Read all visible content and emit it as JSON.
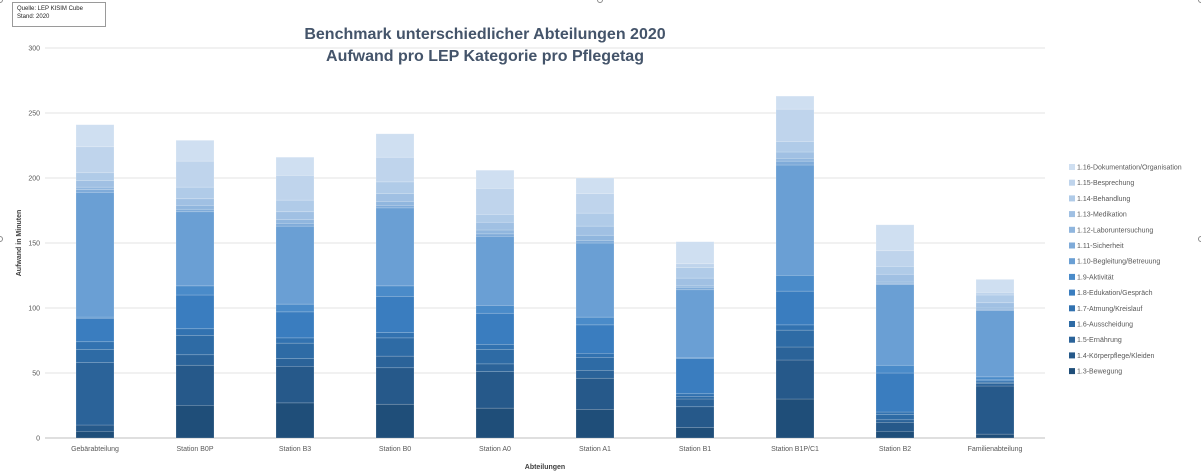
{
  "source": {
    "line1": "Quelle: LEP KISIM Cube",
    "line2": "Stand: 2020"
  },
  "chart_data": {
    "type": "bar",
    "stacked": true,
    "title_line1": "Benchmark unterschiedlicher Abteilungen 2020",
    "title_line2": "Aufwand pro LEP Kategorie pro Pflegetag",
    "xlabel": "Abteilungen",
    "ylabel": "Aufwand in Minuten",
    "ylim": [
      0,
      300
    ],
    "yticks": [
      0,
      50,
      100,
      150,
      200,
      250,
      300
    ],
    "grid": true,
    "legend_position": "right",
    "categories": [
      "Gebärabteilung",
      "Station B0P",
      "Station B3",
      "Station B0",
      "Station A0",
      "Station A1",
      "Station B1",
      "Station B1P/C1",
      "Station B2",
      "Familienabteilung"
    ],
    "series": [
      {
        "name": "1.3-Bewegung",
        "color": "#1f4e79",
        "values": [
          5,
          25,
          27,
          26,
          23,
          22,
          8,
          30,
          5,
          3
        ]
      },
      {
        "name": "1.4-Körperpflege/Kleiden",
        "color": "#26598a",
        "values": [
          5,
          31,
          28,
          28,
          28,
          24,
          16,
          30,
          7,
          37
        ]
      },
      {
        "name": "1.5-Ernährung",
        "color": "#2b6399",
        "values": [
          48,
          8,
          6,
          9,
          6,
          6,
          6,
          10,
          2,
          2
        ]
      },
      {
        "name": "1.6-Ausscheidung",
        "color": "#2e6ba5",
        "values": [
          10,
          15,
          12,
          14,
          11,
          10,
          2,
          13,
          4,
          1
        ]
      },
      {
        "name": "1.7-Atmung/Kreislauf",
        "color": "#3272b0",
        "values": [
          6,
          5,
          4,
          4,
          4,
          3,
          2,
          4,
          2,
          1
        ]
      },
      {
        "name": "1.8-Edukation/Gespräch",
        "color": "#3a7dbf",
        "values": [
          18,
          26,
          20,
          28,
          24,
          22,
          27,
          26,
          30,
          1
        ]
      },
      {
        "name": "1.9-Aktivität",
        "color": "#4a8bc9",
        "values": [
          1,
          7,
          6,
          8,
          6,
          6,
          1,
          12,
          6,
          2
        ]
      },
      {
        "name": "1.10-Begleitung/Betreuung",
        "color": "#6a9fd4",
        "values": [
          96,
          57,
          60,
          60,
          53,
          57,
          52,
          85,
          62,
          51
        ]
      },
      {
        "name": "1.11-Sicherheit",
        "color": "#7fabd9",
        "values": [
          2,
          2,
          2,
          2,
          2,
          2,
          2,
          3,
          1,
          1
        ]
      },
      {
        "name": "1.12-Laboruntersuchung",
        "color": "#90b6de",
        "values": [
          2,
          3,
          3,
          3,
          3,
          4,
          1,
          2,
          1,
          1
        ]
      },
      {
        "name": "1.13-Medikation",
        "color": "#a0c0e3",
        "values": [
          5,
          5,
          6,
          6,
          6,
          7,
          6,
          5,
          6,
          4
        ]
      },
      {
        "name": "1.14-Behandlung",
        "color": "#b0cbe8",
        "values": [
          6,
          9,
          9,
          9,
          6,
          10,
          8,
          8,
          6,
          6
        ]
      },
      {
        "name": "1.15-Besprechung",
        "color": "#bfd4ec",
        "values": [
          20,
          20,
          19,
          19,
          20,
          15,
          3,
          25,
          12,
          2
        ]
      },
      {
        "name": "1.16-Dokumentation/Organisation",
        "color": "#cfdff1",
        "values": [
          17,
          16,
          14,
          18,
          14,
          12,
          17,
          10,
          20,
          10
        ]
      }
    ]
  }
}
